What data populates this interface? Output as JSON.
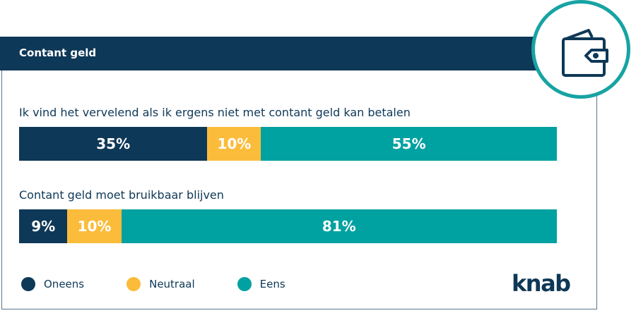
{
  "header": {
    "title": "Contant geld",
    "icon": "wallet-icon"
  },
  "colors": {
    "Oneens": "#0e3857",
    "Neutraal": "#fbbc3c",
    "Eens": "#00a1a1"
  },
  "chart_data": {
    "type": "bar",
    "stacked": true,
    "orientation": "horizontal",
    "categories": [
      "Ik vind het vervelend als ik ergens niet met contant geld kan betalen",
      "Contant geld moet bruikbaar blijven"
    ],
    "series": [
      {
        "name": "Oneens",
        "values": [
          35,
          9
        ],
        "labels": [
          "35%",
          "9%"
        ]
      },
      {
        "name": "Neutraal",
        "values": [
          10,
          10
        ],
        "labels": [
          "10%",
          "10%"
        ]
      },
      {
        "name": "Eens",
        "values": [
          55,
          81
        ],
        "labels": [
          "55%",
          "81%"
        ]
      }
    ],
    "legend": "bottom-left",
    "xlim": [
      0,
      100
    ]
  },
  "logo": "knab"
}
